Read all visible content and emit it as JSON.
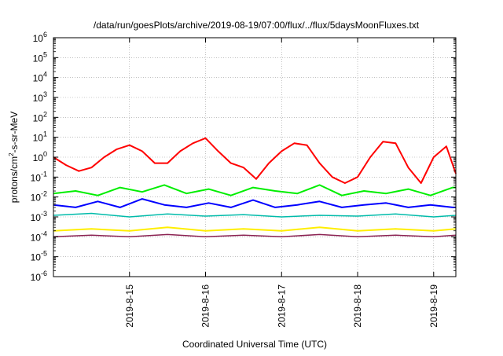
{
  "chart_data": {
    "type": "line",
    "title": "/data/run/goesPlots/archive/2019-08-19/07:00/flux/../flux/5daysMoonFluxes.txt",
    "xlabel": "Coordinated Universal Time (UTC)",
    "ylabel_parts": [
      "protons/cm",
      "2",
      "-s-sr-MeV"
    ],
    "yscale": "log",
    "ylim": [
      1e-06,
      1000000.0
    ],
    "y_ticks": [
      {
        "base": "10",
        "exp": "-6",
        "value": 1e-06
      },
      {
        "base": "10",
        "exp": "-5",
        "value": 1e-05
      },
      {
        "base": "10",
        "exp": "-4",
        "value": 0.0001
      },
      {
        "base": "10",
        "exp": "-3",
        "value": 0.001
      },
      {
        "base": "10",
        "exp": "-2",
        "value": 0.01
      },
      {
        "base": "10",
        "exp": "-1",
        "value": 0.1
      },
      {
        "base": "10",
        "exp": "0",
        "value": 1
      },
      {
        "base": "10",
        "exp": "1",
        "value": 10
      },
      {
        "base": "10",
        "exp": "2",
        "value": 100
      },
      {
        "base": "10",
        "exp": "3",
        "value": 1000
      },
      {
        "base": "10",
        "exp": "4",
        "value": 10000
      },
      {
        "base": "10",
        "exp": "5",
        "value": 100000
      },
      {
        "base": "10",
        "exp": "6",
        "value": 1000000
      }
    ],
    "x_range": [
      "2019-08-14 00:00",
      "2019-08-19 07:00"
    ],
    "x_ticks": [
      "2019-8-15",
      "2019-8-16",
      "2019-8-17",
      "2019-8-18",
      "2019-8-19"
    ],
    "grid": true,
    "legend": "none",
    "series": [
      {
        "color": "#ff0000",
        "width": 2.0,
        "x": [
          "2019-08-14 00:00",
          "2019-08-14 04:00",
          "2019-08-14 08:00",
          "2019-08-14 12:00",
          "2019-08-14 16:00",
          "2019-08-14 20:00",
          "2019-08-15 00:00",
          "2019-08-15 04:00",
          "2019-08-15 08:00",
          "2019-08-15 12:00",
          "2019-08-15 16:00",
          "2019-08-15 20:00",
          "2019-08-16 00:00",
          "2019-08-16 04:00",
          "2019-08-16 08:00",
          "2019-08-16 12:00",
          "2019-08-16 16:00",
          "2019-08-16 20:00",
          "2019-08-17 00:00",
          "2019-08-17 04:00",
          "2019-08-17 08:00",
          "2019-08-17 12:00",
          "2019-08-17 16:00",
          "2019-08-17 20:00",
          "2019-08-18 00:00",
          "2019-08-18 04:00",
          "2019-08-18 08:00",
          "2019-08-18 12:00",
          "2019-08-18 16:00",
          "2019-08-18 20:00",
          "2019-08-19 00:00",
          "2019-08-19 04:00",
          "2019-08-19 07:00"
        ],
        "y": [
          1.0,
          0.4,
          0.2,
          0.3,
          1.0,
          2.5,
          4.0,
          2.0,
          0.5,
          0.5,
          2.0,
          5.0,
          9.0,
          2.0,
          0.5,
          0.3,
          0.08,
          0.5,
          2.0,
          5.0,
          4.0,
          0.5,
          0.1,
          0.05,
          0.1,
          1.0,
          6.0,
          5.0,
          0.3,
          0.05,
          1.0,
          3.5,
          0.15
        ]
      },
      {
        "color": "#00ee00",
        "width": 2.0,
        "x": [
          "2019-08-14 00:00",
          "2019-08-14 07:00",
          "2019-08-14 14:00",
          "2019-08-14 21:00",
          "2019-08-15 04:00",
          "2019-08-15 11:00",
          "2019-08-15 18:00",
          "2019-08-16 01:00",
          "2019-08-16 08:00",
          "2019-08-16 15:00",
          "2019-08-16 22:00",
          "2019-08-17 05:00",
          "2019-08-17 12:00",
          "2019-08-17 19:00",
          "2019-08-18 02:00",
          "2019-08-18 09:00",
          "2019-08-18 16:00",
          "2019-08-18 23:00",
          "2019-08-19 06:00",
          "2019-08-19 07:00"
        ],
        "y": [
          0.015,
          0.02,
          0.012,
          0.03,
          0.018,
          0.04,
          0.015,
          0.025,
          0.012,
          0.03,
          0.02,
          0.015,
          0.04,
          0.012,
          0.02,
          0.015,
          0.025,
          0.012,
          0.03,
          0.03
        ]
      },
      {
        "color": "#0000ff",
        "width": 2.0,
        "x": [
          "2019-08-14 00:00",
          "2019-08-14 07:00",
          "2019-08-14 14:00",
          "2019-08-14 21:00",
          "2019-08-15 04:00",
          "2019-08-15 11:00",
          "2019-08-15 18:00",
          "2019-08-16 01:00",
          "2019-08-16 08:00",
          "2019-08-16 15:00",
          "2019-08-16 22:00",
          "2019-08-17 05:00",
          "2019-08-17 12:00",
          "2019-08-17 19:00",
          "2019-08-18 02:00",
          "2019-08-18 09:00",
          "2019-08-18 16:00",
          "2019-08-18 23:00",
          "2019-08-19 06:00",
          "2019-08-19 07:00"
        ],
        "y": [
          0.004,
          0.003,
          0.006,
          0.003,
          0.008,
          0.004,
          0.003,
          0.005,
          0.003,
          0.007,
          0.003,
          0.004,
          0.006,
          0.003,
          0.004,
          0.005,
          0.003,
          0.004,
          0.003,
          0.003
        ]
      },
      {
        "color": "#00bbaa",
        "width": 1.5,
        "x": [
          "2019-08-14 00:00",
          "2019-08-14 12:00",
          "2019-08-15 00:00",
          "2019-08-15 12:00",
          "2019-08-16 00:00",
          "2019-08-16 12:00",
          "2019-08-17 00:00",
          "2019-08-17 12:00",
          "2019-08-18 00:00",
          "2019-08-18 12:00",
          "2019-08-19 00:00",
          "2019-08-19 07:00"
        ],
        "y": [
          0.0012,
          0.0015,
          0.001,
          0.0014,
          0.0011,
          0.0013,
          0.001,
          0.0012,
          0.0011,
          0.0014,
          0.001,
          0.0012
        ]
      },
      {
        "color": "#ffee00",
        "width": 2.0,
        "x": [
          "2019-08-14 00:00",
          "2019-08-14 12:00",
          "2019-08-15 00:00",
          "2019-08-15 12:00",
          "2019-08-16 00:00",
          "2019-08-16 12:00",
          "2019-08-17 00:00",
          "2019-08-17 12:00",
          "2019-08-18 00:00",
          "2019-08-18 12:00",
          "2019-08-19 00:00",
          "2019-08-19 07:00"
        ],
        "y": [
          0.0002,
          0.00025,
          0.0002,
          0.0003,
          0.0002,
          0.00025,
          0.0002,
          0.0003,
          0.0002,
          0.00025,
          0.0002,
          0.00025
        ]
      },
      {
        "color": "#8b2252",
        "width": 1.5,
        "x": [
          "2019-08-14 00:00",
          "2019-08-14 12:00",
          "2019-08-15 00:00",
          "2019-08-15 12:00",
          "2019-08-16 00:00",
          "2019-08-16 12:00",
          "2019-08-17 00:00",
          "2019-08-17 12:00",
          "2019-08-18 00:00",
          "2019-08-18 12:00",
          "2019-08-19 00:00",
          "2019-08-19 07:00"
        ],
        "y": [
          0.0001,
          0.00012,
          0.0001,
          0.00013,
          0.0001,
          0.00012,
          0.0001,
          0.00013,
          0.0001,
          0.00012,
          0.0001,
          0.00012
        ]
      }
    ]
  }
}
